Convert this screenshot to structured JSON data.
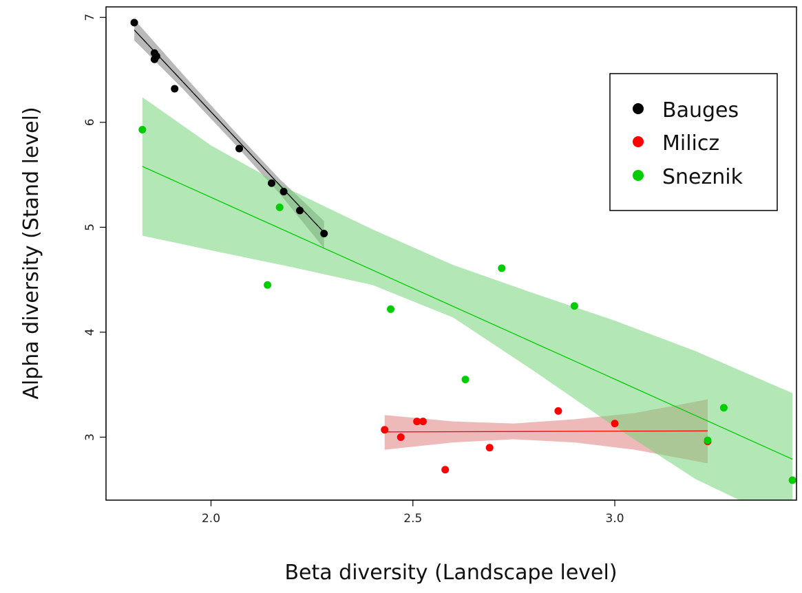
{
  "chart_data": {
    "type": "scatter",
    "title": "",
    "xlabel": "Beta diversity (Landscape level)",
    "ylabel": "Alpha diversity (Stand level)",
    "xlim": [
      1.74,
      3.45
    ],
    "ylim": [
      2.4,
      7.1
    ],
    "xticks": [
      2.0,
      2.5,
      3.0
    ],
    "xtick_labels": [
      "2.0",
      "2.5",
      "3.0"
    ],
    "yticks": [
      3,
      4,
      5,
      6,
      7
    ],
    "ytick_labels": [
      "3",
      "4",
      "5",
      "6",
      "7"
    ],
    "grid": false,
    "legend_position": "top-right",
    "series": [
      {
        "name": "Bauges",
        "color": "#000000",
        "band_color": "#7f7f7f",
        "points": [
          [
            1.81,
            6.95
          ],
          [
            1.86,
            6.66
          ],
          [
            1.865,
            6.63
          ],
          [
            1.86,
            6.6
          ],
          [
            1.91,
            6.32
          ],
          [
            2.07,
            5.75
          ],
          [
            2.15,
            5.42
          ],
          [
            2.18,
            5.34
          ],
          [
            2.22,
            5.16
          ],
          [
            2.28,
            4.94
          ]
        ],
        "fit": [
          [
            1.81,
            6.88
          ],
          [
            2.28,
            4.95
          ]
        ],
        "band_upper": [
          [
            1.81,
            6.98
          ],
          [
            1.93,
            6.46
          ],
          [
            2.05,
            5.95
          ],
          [
            2.17,
            5.46
          ],
          [
            2.28,
            5.06
          ]
        ],
        "band_lower": [
          [
            1.81,
            6.78
          ],
          [
            1.93,
            6.32
          ],
          [
            2.05,
            5.83
          ],
          [
            2.17,
            5.32
          ],
          [
            2.28,
            4.8
          ]
        ]
      },
      {
        "name": "Milicz",
        "color": "#ff0000",
        "band_color": "#e08080",
        "points": [
          [
            2.43,
            3.07
          ],
          [
            2.47,
            3.0
          ],
          [
            2.51,
            3.15
          ],
          [
            2.525,
            3.15
          ],
          [
            2.58,
            2.69
          ],
          [
            2.69,
            2.9
          ],
          [
            2.86,
            3.25
          ],
          [
            3.0,
            3.13
          ],
          [
            3.23,
            2.96
          ]
        ],
        "fit": [
          [
            2.43,
            3.05
          ],
          [
            3.23,
            3.06
          ]
        ],
        "band_upper": [
          [
            2.43,
            3.21
          ],
          [
            2.6,
            3.15
          ],
          [
            2.75,
            3.13
          ],
          [
            2.9,
            3.17
          ],
          [
            3.05,
            3.23
          ],
          [
            3.23,
            3.36
          ]
        ],
        "band_lower": [
          [
            2.43,
            2.88
          ],
          [
            2.6,
            2.95
          ],
          [
            2.75,
            2.98
          ],
          [
            2.9,
            2.95
          ],
          [
            3.05,
            2.88
          ],
          [
            3.23,
            2.75
          ]
        ]
      },
      {
        "name": "Sneznik",
        "color": "#00cd00",
        "band_color": "#77d47a",
        "points": [
          [
            1.83,
            5.93
          ],
          [
            2.14,
            4.45
          ],
          [
            2.17,
            5.19
          ],
          [
            2.445,
            4.22
          ],
          [
            2.63,
            3.55
          ],
          [
            2.72,
            4.61
          ],
          [
            2.9,
            4.25
          ],
          [
            3.23,
            2.97
          ],
          [
            3.27,
            3.28
          ],
          [
            3.44,
            2.59
          ]
        ],
        "fit": [
          [
            1.83,
            5.58
          ],
          [
            3.44,
            2.79
          ]
        ],
        "band_upper": [
          [
            1.83,
            6.24
          ],
          [
            2.0,
            5.78
          ],
          [
            2.2,
            5.35
          ],
          [
            2.4,
            4.98
          ],
          [
            2.6,
            4.64
          ],
          [
            2.8,
            4.37
          ],
          [
            3.0,
            4.11
          ],
          [
            3.2,
            3.82
          ],
          [
            3.44,
            3.42
          ]
        ],
        "band_lower": [
          [
            1.83,
            4.92
          ],
          [
            2.0,
            4.78
          ],
          [
            2.2,
            4.62
          ],
          [
            2.4,
            4.45
          ],
          [
            2.6,
            4.14
          ],
          [
            2.8,
            3.63
          ],
          [
            3.0,
            3.1
          ],
          [
            3.2,
            2.6
          ],
          [
            3.44,
            2.16
          ]
        ]
      }
    ]
  }
}
